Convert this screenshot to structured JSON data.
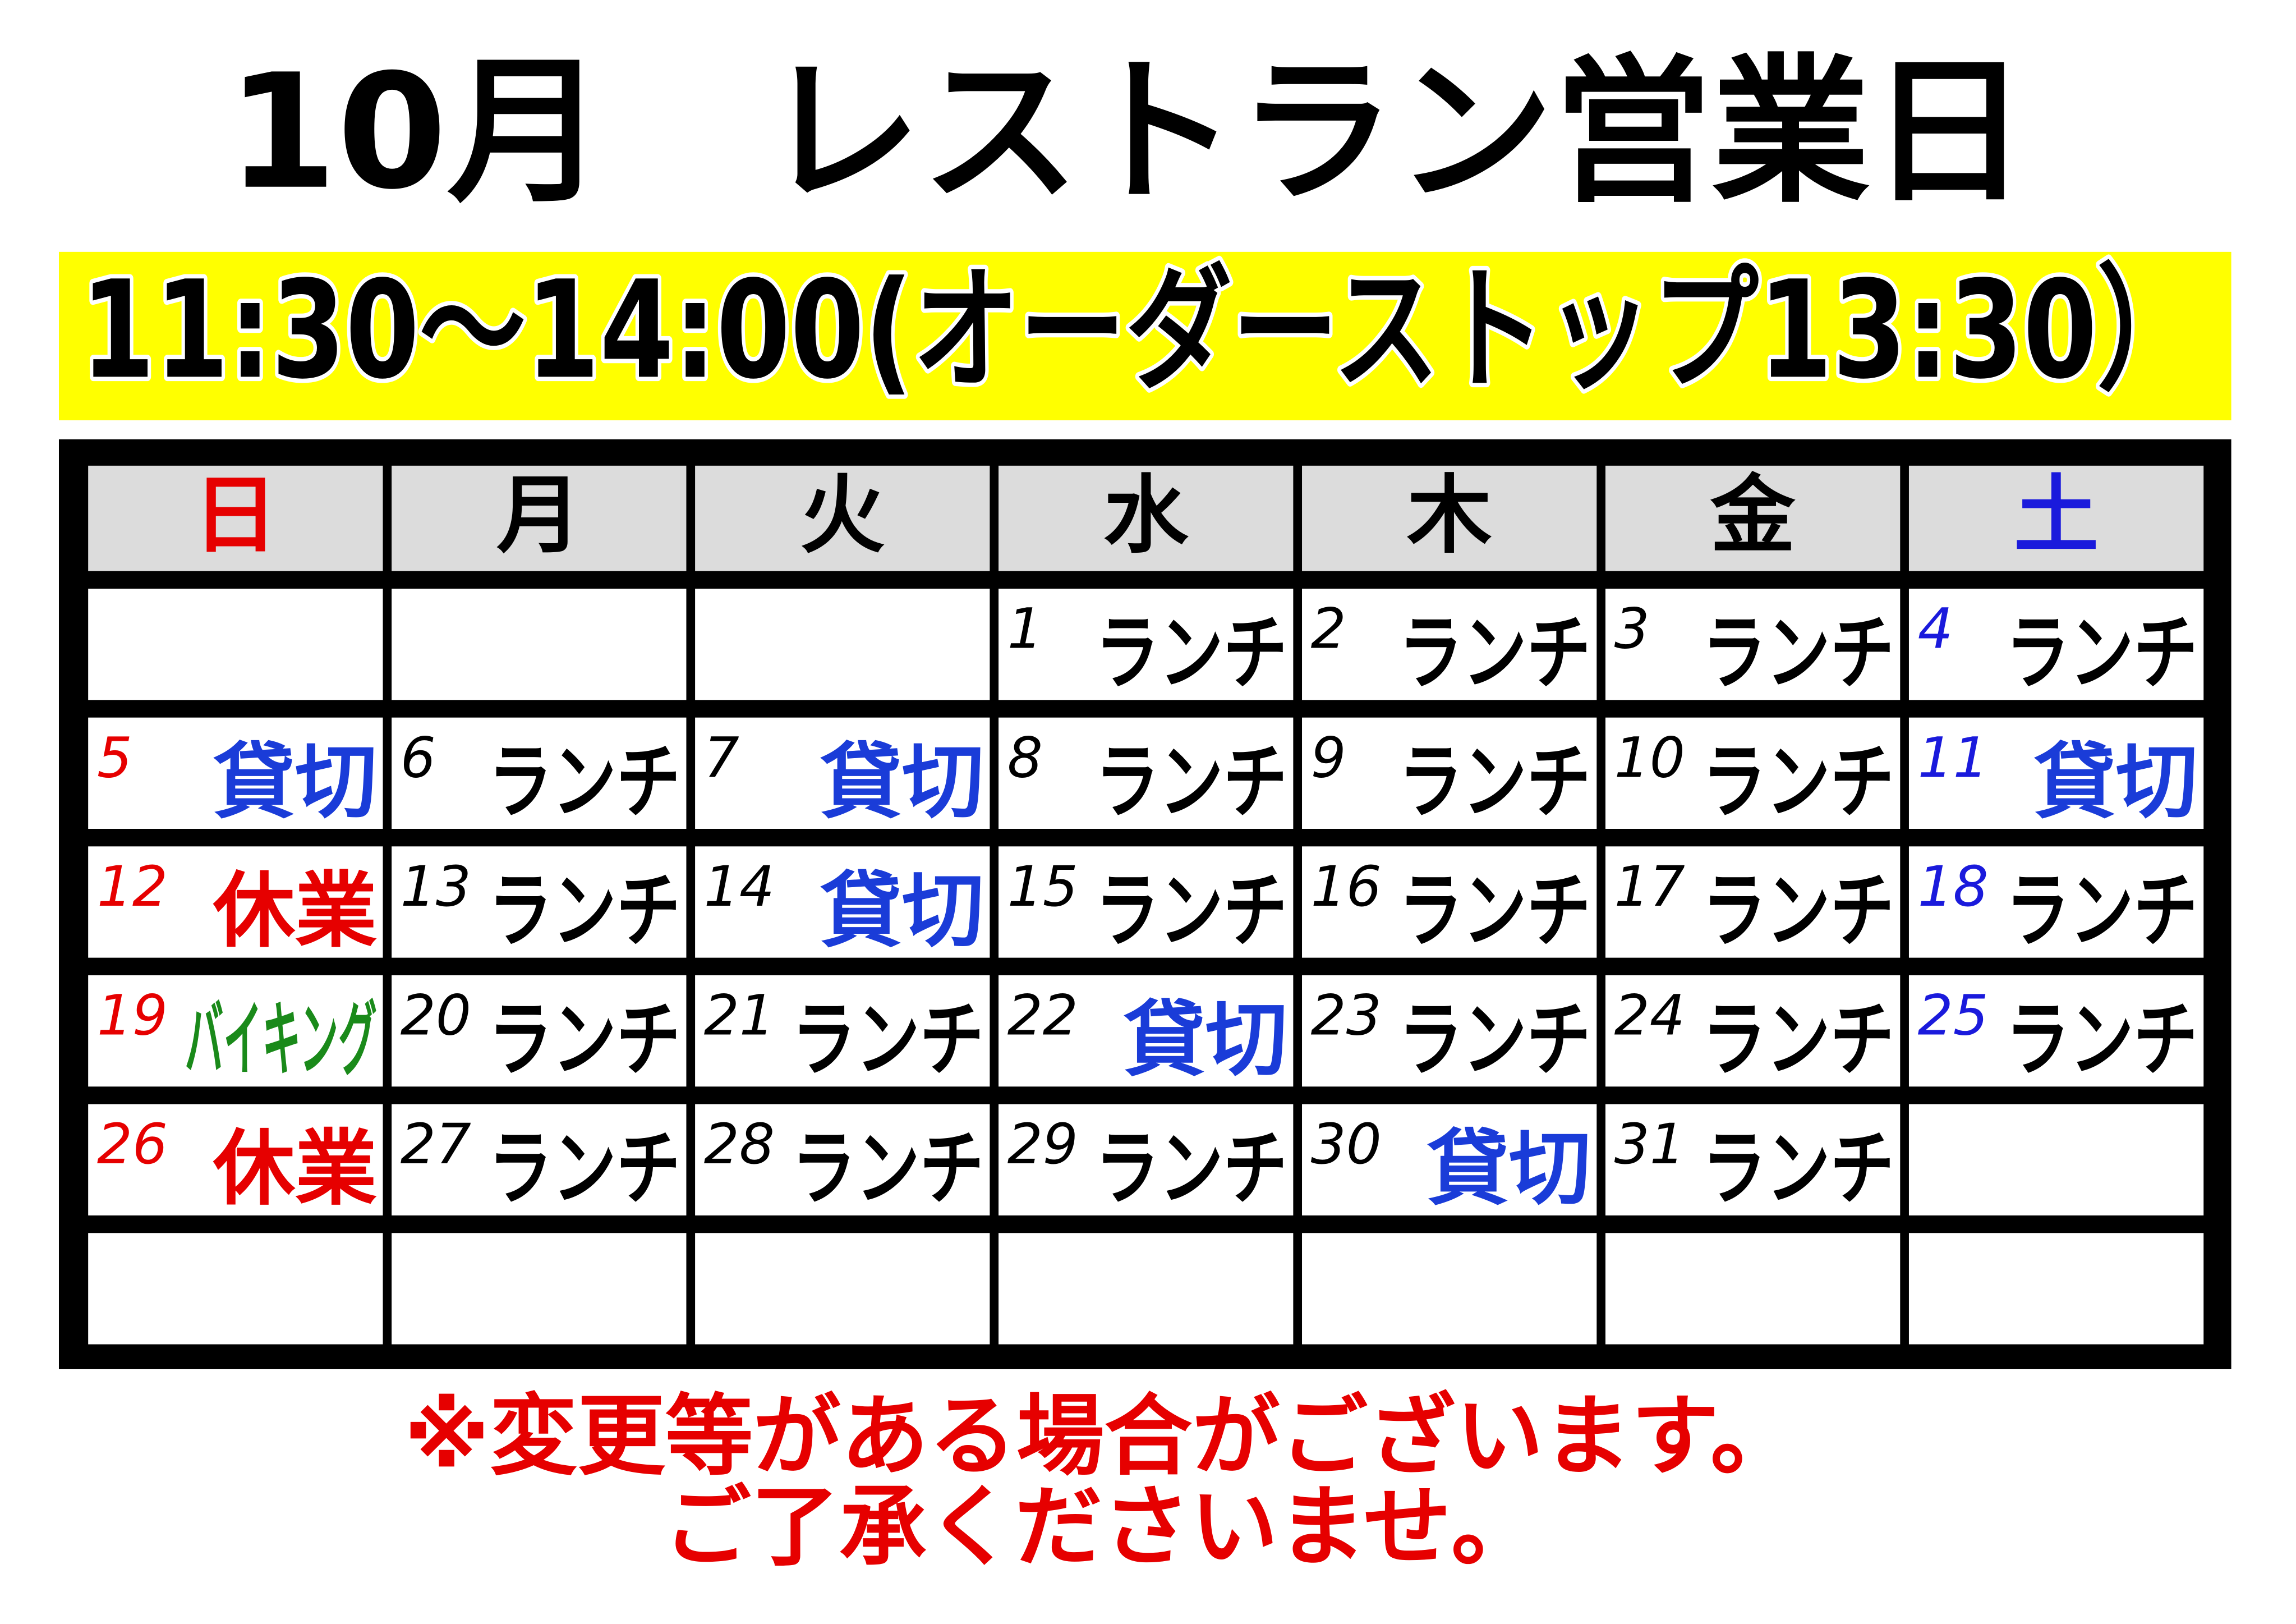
{
  "title": "10月　レストラン営業日",
  "hours": "11:30～14:00(オーダーストップ13:30）",
  "calendar": {
    "weekdays": [
      "日",
      "月",
      "火",
      "水",
      "木",
      "金",
      "土"
    ],
    "weekday_colors": [
      "#e60000",
      "#000000",
      "#000000",
      "#000000",
      "#000000",
      "#000000",
      "#1a1adc"
    ],
    "weeks": [
      [
        null,
        null,
        null,
        {
          "day": 1,
          "label": "ランチ",
          "color": "#000000"
        },
        {
          "day": 2,
          "label": "ランチ",
          "color": "#000000"
        },
        {
          "day": 3,
          "label": "ランチ",
          "color": "#000000"
        },
        {
          "day": 4,
          "label": "ランチ",
          "color": "#000000"
        }
      ],
      [
        {
          "day": 5,
          "label": "貸切",
          "color": "#1a3cd8"
        },
        {
          "day": 6,
          "label": "ランチ",
          "color": "#000000"
        },
        {
          "day": 7,
          "label": "貸切",
          "color": "#1a3cd8"
        },
        {
          "day": 8,
          "label": "ランチ",
          "color": "#000000"
        },
        {
          "day": 9,
          "label": "ランチ",
          "color": "#000000"
        },
        {
          "day": 10,
          "label": "ランチ",
          "color": "#000000"
        },
        {
          "day": 11,
          "label": "貸切",
          "color": "#1a3cd8"
        }
      ],
      [
        {
          "day": 12,
          "label": "休業",
          "color": "#e60000"
        },
        {
          "day": 13,
          "label": "ランチ",
          "color": "#000000"
        },
        {
          "day": 14,
          "label": "貸切",
          "color": "#1a3cd8"
        },
        {
          "day": 15,
          "label": "ランチ",
          "color": "#000000"
        },
        {
          "day": 16,
          "label": "ランチ",
          "color": "#000000"
        },
        {
          "day": 17,
          "label": "ランチ",
          "color": "#000000"
        },
        {
          "day": 18,
          "label": "ランチ",
          "color": "#000000"
        }
      ],
      [
        {
          "day": 19,
          "label": "バイキング",
          "color": "#1a8a1a"
        },
        {
          "day": 20,
          "label": "ランチ",
          "color": "#000000"
        },
        {
          "day": 21,
          "label": "ランチ",
          "color": "#000000"
        },
        {
          "day": 22,
          "label": "貸切",
          "color": "#1a3cd8"
        },
        {
          "day": 23,
          "label": "ランチ",
          "color": "#000000"
        },
        {
          "day": 24,
          "label": "ランチ",
          "color": "#000000"
        },
        {
          "day": 25,
          "label": "ランチ",
          "color": "#000000"
        }
      ],
      [
        {
          "day": 26,
          "label": "休業",
          "color": "#e60000"
        },
        {
          "day": 27,
          "label": "ランチ",
          "color": "#000000"
        },
        {
          "day": 28,
          "label": "ランチ",
          "color": "#000000"
        },
        {
          "day": 29,
          "label": "ランチ",
          "color": "#000000"
        },
        {
          "day": 30,
          "label": "貸切",
          "color": "#1a3cd8"
        },
        {
          "day": 31,
          "label": "ランチ",
          "color": "#000000"
        },
        null
      ],
      [
        null,
        null,
        null,
        null,
        null,
        null,
        null
      ]
    ]
  },
  "notice": [
    "※変更等がある場合がございます。",
    "ご了承くださいませ。"
  ]
}
